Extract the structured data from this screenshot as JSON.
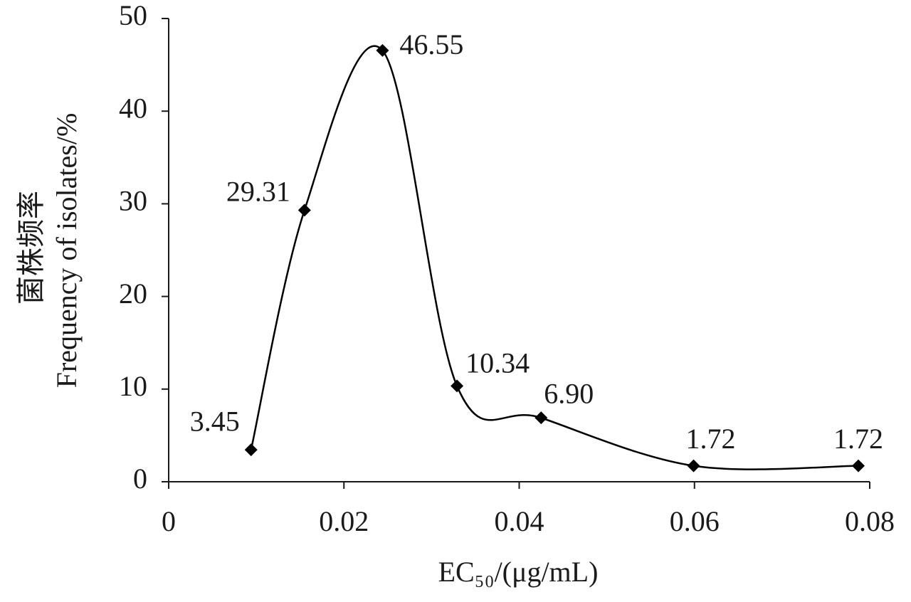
{
  "chart_data": {
    "type": "line",
    "x_label": "EC₅₀/(μg/mL)",
    "y_label": [
      "菌株频率",
      "Frequency of isolates/%"
    ],
    "series": [
      {
        "color": "#000000",
        "x": [
          0.0094,
          0.0155,
          0.0244,
          0.0329,
          0.0425,
          0.0599,
          0.0787
        ],
        "values": [
          3.45,
          29.31,
          46.55,
          10.34,
          6.9,
          1.72,
          1.72
        ],
        "value_labels": [
          "3.45",
          "29.31",
          "46.55",
          "10.34",
          "6.90",
          "1.72",
          "1.72"
        ]
      }
    ],
    "xlim": [
      0,
      0.08
    ],
    "xticks": [
      0,
      0.02,
      0.04,
      0.06,
      0.08
    ],
    "ylim": [
      0,
      50
    ],
    "yticks": [
      0,
      10,
      20,
      30,
      40,
      50
    ],
    "smooth": true,
    "marker": "diamond",
    "grid": false
  }
}
